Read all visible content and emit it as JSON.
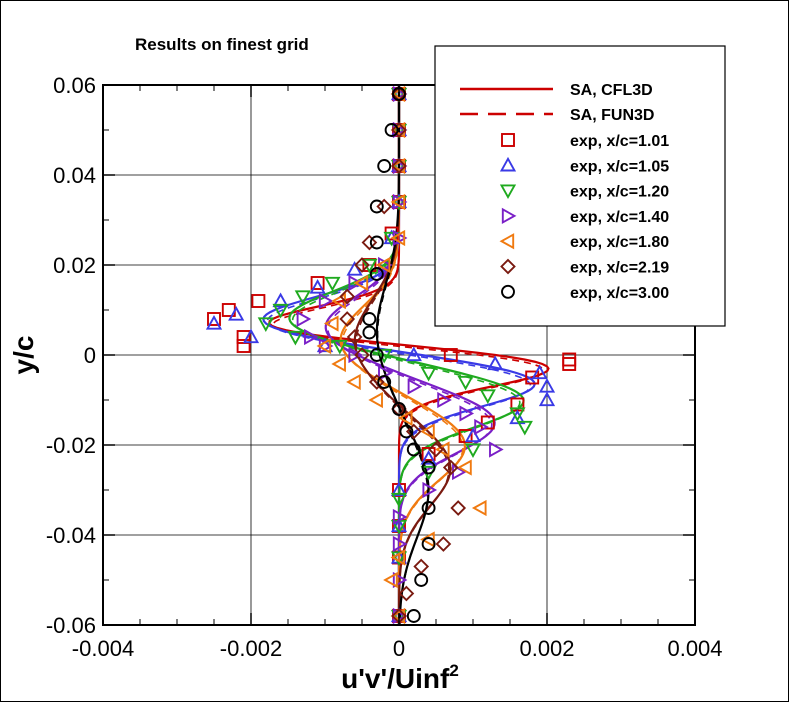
{
  "chart_data": {
    "type": "line",
    "title": "Results on finest grid",
    "xlabel": "u'v'/Uinf",
    "xlabel_superscript": "2",
    "ylabel": "y/c",
    "xlim": [
      -0.004,
      0.004
    ],
    "ylim": [
      -0.06,
      0.06
    ],
    "x_ticks": [
      -0.004,
      -0.002,
      0,
      0.002,
      0.004
    ],
    "x_tick_labels": [
      "-0.004",
      "-0.002",
      "0",
      "0.002",
      "0.004"
    ],
    "y_ticks": [
      -0.06,
      -0.04,
      -0.02,
      0,
      0.02,
      0.04,
      0.06
    ],
    "y_tick_labels": [
      "-0.06",
      "-0.04",
      "-0.02",
      "0",
      "0.02",
      "0.04",
      "0.06"
    ],
    "grid": true,
    "legend_position": "top-right",
    "model_lines": {
      "solid_label": "SA, CFL3D",
      "dashed_label": "SA, FUN3D",
      "legend_color": "#cc0000",
      "style_note": "each station drawn solid (CFL3D) and dashed (FUN3D) in its color"
    },
    "series": [
      {
        "name": "exp, x/c=1.01",
        "marker": "square",
        "color": "#cc0000",
        "model": {
          "amp_neg": -0.00215,
          "y_neg": 0.006,
          "s_neg": 0.006,
          "amp_pos": 0.0023,
          "y_pos": -0.002,
          "s_pos": 0.0065
        },
        "points": [
          [
            0,
            0.058
          ],
          [
            0,
            0.05
          ],
          [
            0,
            0.042
          ],
          [
            0,
            0.034
          ],
          [
            -0.0001,
            0.027
          ],
          [
            -0.0004,
            0.02
          ],
          [
            -0.0011,
            0.016
          ],
          [
            -0.0019,
            0.012
          ],
          [
            -0.0023,
            0.01
          ],
          [
            -0.0025,
            0.008
          ],
          [
            -0.0021,
            0.004
          ],
          [
            -0.0021,
            0.002
          ],
          [
            0.0007,
            0.0
          ],
          [
            0.0023,
            -0.001
          ],
          [
            0.0023,
            -0.002
          ],
          [
            0.0018,
            -0.005
          ],
          [
            0.0016,
            -0.011
          ],
          [
            0.0012,
            -0.015
          ],
          [
            0.0009,
            -0.018
          ],
          [
            0.0004,
            -0.022
          ],
          [
            0,
            -0.03
          ],
          [
            0,
            -0.038
          ],
          [
            0,
            -0.045
          ],
          [
            0,
            -0.058
          ]
        ]
      },
      {
        "name": "exp, x/c=1.05",
        "marker": "triangle-up",
        "color": "#3a3ae6",
        "model": {
          "amp_neg": -0.0019,
          "y_neg": 0.0075,
          "s_neg": 0.0075,
          "amp_pos": 0.0019,
          "y_pos": -0.006,
          "s_pos": 0.0075
        },
        "points": [
          [
            0,
            0.058
          ],
          [
            0,
            0.05
          ],
          [
            0,
            0.042
          ],
          [
            0,
            0.034
          ],
          [
            -0.0001,
            0.026
          ],
          [
            -0.0006,
            0.019
          ],
          [
            -0.0011,
            0.015
          ],
          [
            -0.0016,
            0.012
          ],
          [
            -0.0022,
            0.009
          ],
          [
            -0.0025,
            0.007
          ],
          [
            -0.002,
            0.004
          ],
          [
            -0.001,
            0.002
          ],
          [
            0.0002,
            0.0
          ],
          [
            0.0013,
            -0.002
          ],
          [
            0.0019,
            -0.004
          ],
          [
            0.002,
            -0.007
          ],
          [
            0.002,
            -0.01
          ],
          [
            0.0016,
            -0.014
          ],
          [
            0.001,
            -0.018
          ],
          [
            0.0004,
            -0.023
          ],
          [
            0,
            -0.03
          ],
          [
            0,
            -0.038
          ],
          [
            0,
            -0.045
          ],
          [
            0,
            -0.058
          ]
        ]
      },
      {
        "name": "exp, x/c=1.20",
        "marker": "triangle-down",
        "color": "#1faa1f",
        "model": {
          "amp_neg": -0.0015,
          "y_neg": 0.008,
          "s_neg": 0.0085,
          "amp_pos": 0.0017,
          "y_pos": -0.01,
          "s_pos": 0.0085
        },
        "points": [
          [
            0,
            0.058
          ],
          [
            0,
            0.05
          ],
          [
            0,
            0.042
          ],
          [
            0,
            0.034
          ],
          [
            -0.0001,
            0.026
          ],
          [
            -0.0004,
            0.02
          ],
          [
            -0.0009,
            0.016
          ],
          [
            -0.0013,
            0.013
          ],
          [
            -0.0016,
            0.01
          ],
          [
            -0.0018,
            0.007
          ],
          [
            -0.0014,
            0.004
          ],
          [
            -0.0008,
            0.002
          ],
          [
            -0.0002,
            0.0
          ],
          [
            0.0004,
            -0.004
          ],
          [
            0.0009,
            -0.006
          ],
          [
            0.0012,
            -0.009
          ],
          [
            0.0016,
            -0.013
          ],
          [
            0.0017,
            -0.016
          ],
          [
            0.001,
            -0.021
          ],
          [
            0.0004,
            -0.026
          ],
          [
            0,
            -0.032
          ],
          [
            0,
            -0.038
          ],
          [
            0,
            -0.045
          ],
          [
            0,
            -0.058
          ]
        ]
      },
      {
        "name": "exp, x/c=1.40",
        "marker": "triangle-right",
        "color": "#7a1fc7",
        "model": {
          "amp_neg": -0.001,
          "y_neg": 0.006,
          "s_neg": 0.0095,
          "amp_pos": 0.0013,
          "y_pos": -0.015,
          "s_pos": 0.0095
        },
        "points": [
          [
            0,
            0.058
          ],
          [
            0,
            0.05
          ],
          [
            0,
            0.042
          ],
          [
            0,
            0.034
          ],
          [
            0,
            0.026
          ],
          [
            -0.0002,
            0.02
          ],
          [
            -0.0006,
            0.016
          ],
          [
            -0.001,
            0.012
          ],
          [
            -0.0013,
            0.008
          ],
          [
            -0.0012,
            0.004
          ],
          [
            -0.001,
            0.002
          ],
          [
            -0.0006,
            0.0
          ],
          [
            -0.0002,
            -0.004
          ],
          [
            0.0002,
            -0.007
          ],
          [
            0.0006,
            -0.01
          ],
          [
            0.0009,
            -0.013
          ],
          [
            0.0011,
            -0.016
          ],
          [
            0.0013,
            -0.021
          ],
          [
            0.0008,
            -0.026
          ],
          [
            0.0004,
            -0.03
          ],
          [
            0,
            -0.036
          ],
          [
            0,
            -0.042
          ],
          [
            0,
            -0.05
          ],
          [
            0,
            -0.058
          ]
        ]
      },
      {
        "name": "exp, x/c=1.80",
        "marker": "triangle-left",
        "color": "#f07a10",
        "model": {
          "amp_neg": -0.0008,
          "y_neg": 0.003,
          "s_neg": 0.011,
          "amp_pos": 0.0009,
          "y_pos": -0.02,
          "s_pos": 0.011
        },
        "points": [
          [
            0,
            0.058
          ],
          [
            0,
            0.05
          ],
          [
            0,
            0.042
          ],
          [
            0,
            0.034
          ],
          [
            0,
            0.026
          ],
          [
            -0.0002,
            0.02
          ],
          [
            -0.0005,
            0.016
          ],
          [
            -0.0008,
            0.012
          ],
          [
            -0.0009,
            0.007
          ],
          [
            -0.001,
            0.002
          ],
          [
            -0.0008,
            -0.002
          ],
          [
            -0.0006,
            -0.006
          ],
          [
            -0.0003,
            -0.01
          ],
          [
            0.0001,
            -0.014
          ],
          [
            0.0004,
            -0.017
          ],
          [
            0.0006,
            -0.021
          ],
          [
            0.0009,
            -0.025
          ],
          [
            0.0011,
            -0.034
          ],
          [
            0.0004,
            -0.041
          ],
          [
            0,
            -0.045
          ],
          [
            -0.0001,
            -0.05
          ],
          [
            0,
            -0.058
          ]
        ]
      },
      {
        "name": "exp, x/c=2.19",
        "marker": "diamond",
        "color": "#7a1a10",
        "model": {
          "amp_neg": -0.0006,
          "y_neg": 0.003,
          "s_neg": 0.013,
          "amp_pos": 0.0007,
          "y_pos": -0.025,
          "s_pos": 0.012
        },
        "points": [
          [
            0,
            0.058
          ],
          [
            0,
            0.05
          ],
          [
            0,
            0.042
          ],
          [
            -0.0002,
            0.033
          ],
          [
            -0.0004,
            0.025
          ],
          [
            -0.0005,
            0.02
          ],
          [
            -0.0007,
            0.013
          ],
          [
            -0.0007,
            0.008
          ],
          [
            -0.0006,
            0.004
          ],
          [
            -0.0005,
            0.0
          ],
          [
            -0.0003,
            -0.006
          ],
          [
            0,
            -0.012
          ],
          [
            0.0002,
            -0.017
          ],
          [
            0.0005,
            -0.021
          ],
          [
            0.0007,
            -0.025
          ],
          [
            0.0008,
            -0.034
          ],
          [
            0.0006,
            -0.042
          ],
          [
            0.0003,
            -0.047
          ],
          [
            0.0001,
            -0.053
          ],
          [
            0,
            -0.058
          ]
        ]
      },
      {
        "name": "exp, x/c=3.00",
        "marker": "circle",
        "color": "#000000",
        "model": {
          "amp_neg": -0.0003,
          "y_neg": 0.005,
          "s_neg": 0.015,
          "amp_pos": 0.0004,
          "y_pos": -0.03,
          "s_pos": 0.015
        },
        "points": [
          [
            0,
            0.058
          ],
          [
            -0.0001,
            0.05
          ],
          [
            -0.0002,
            0.042
          ],
          [
            -0.0003,
            0.033
          ],
          [
            -0.0003,
            0.025
          ],
          [
            -0.0003,
            0.018
          ],
          [
            -0.0004,
            0.008
          ],
          [
            -0.0004,
            0.005
          ],
          [
            -0.0003,
            0.0
          ],
          [
            -0.0002,
            -0.006
          ],
          [
            0,
            -0.012
          ],
          [
            0.0001,
            -0.017
          ],
          [
            0.0002,
            -0.021
          ],
          [
            0.0004,
            -0.025
          ],
          [
            0.0004,
            -0.034
          ],
          [
            0.0004,
            -0.042
          ],
          [
            0.0003,
            -0.05
          ],
          [
            0.0002,
            -0.058
          ]
        ]
      }
    ]
  }
}
